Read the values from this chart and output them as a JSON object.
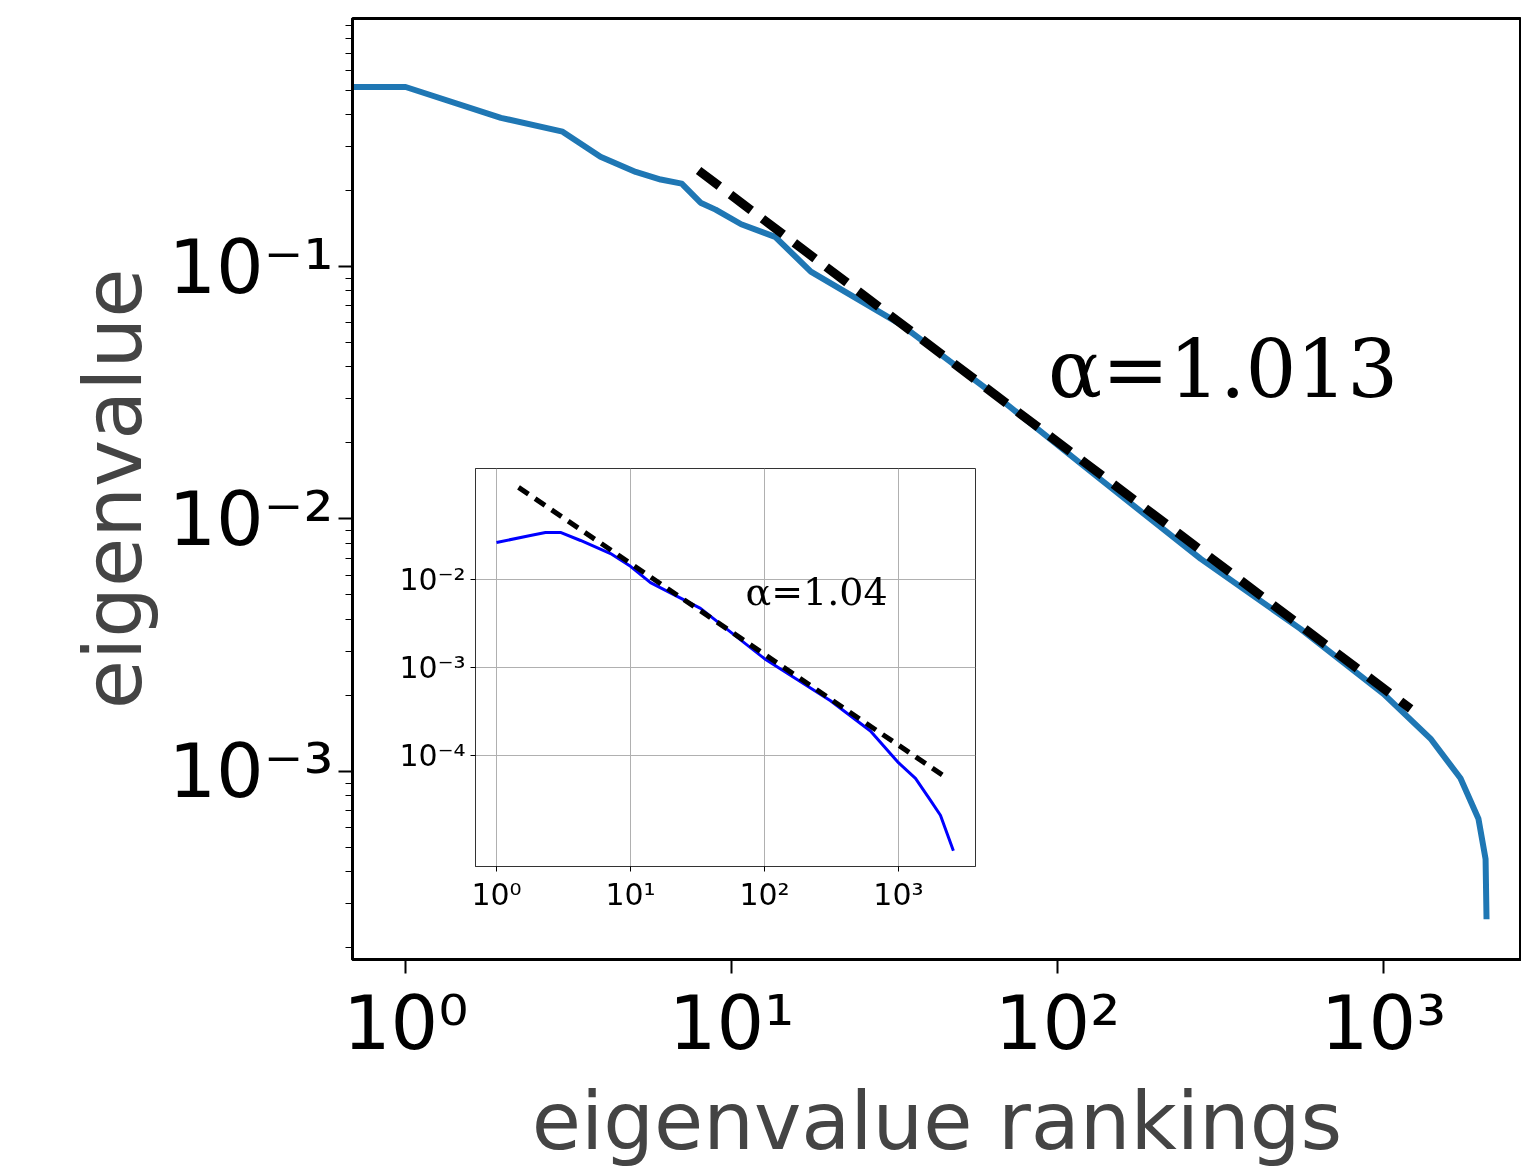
{
  "chart_data": [
    {
      "type": "line",
      "xlabel": "eigenvalue rankings",
      "ylabel": "eigenvalue",
      "log": "xy",
      "grid": false,
      "xlim": [
        0.687,
        2650
      ],
      "ylim": [
        0.00018,
        0.96
      ],
      "xticks": [
        {
          "value": 1,
          "label": "10⁰"
        },
        {
          "value": 10,
          "label": "10¹"
        },
        {
          "value": 100,
          "label": "10²"
        },
        {
          "value": 1000,
          "label": "10³"
        }
      ],
      "yticks": [
        {
          "value": 0.001,
          "label": "10⁻³"
        },
        {
          "value": 0.01,
          "label": "10⁻²"
        },
        {
          "value": 0.1,
          "label": "10⁻¹"
        }
      ],
      "series": [
        {
          "color": "#1f77b4",
          "line_style": "solid",
          "x": [
            0.687,
            1,
            1.96,
            3.03,
            3.96,
            5.08,
            6.06,
            7.03,
            8.03,
            8.93,
            10.7,
            13.6,
            17.5,
            33,
            66.8,
            135,
            275,
            556,
            1000,
            1393,
            1722,
            1955,
            2056,
            2070
          ],
          "values": [
            0.514,
            0.514,
            0.388,
            0.342,
            0.272,
            0.237,
            0.221,
            0.213,
            0.179,
            0.168,
            0.147,
            0.131,
            0.0955,
            0.059,
            0.0298,
            0.0144,
            0.00695,
            0.00367,
            0.00203,
            0.00135,
            0.00094,
            0.00065,
            0.00045,
            0.00026
          ]
        },
        {
          "color": "#000000",
          "line_style": "dashed",
          "x": [
            7.92,
            1211
          ],
          "values": [
            0.24,
            0.00177
          ]
        }
      ],
      "annotations": [
        "α=1.013"
      ]
    },
    {
      "type": "line",
      "log": "xy",
      "grid": true,
      "xlim": [
        0.697,
        3758
      ],
      "ylim": [
        5.5e-06,
        0.182
      ],
      "xticks": [
        {
          "value": 1,
          "label": "10⁰"
        },
        {
          "value": 10,
          "label": "10¹"
        },
        {
          "value": 100,
          "label": "10²"
        },
        {
          "value": 1000,
          "label": "10³"
        }
      ],
      "yticks": [
        {
          "value": 0.0001,
          "label": "10⁻⁴"
        },
        {
          "value": 0.001,
          "label": "10⁻³"
        },
        {
          "value": 0.01,
          "label": "10⁻²"
        }
      ],
      "series": [
        {
          "color": "#0000ff",
          "line_style": "solid",
          "x": [
            1,
            1.79,
            2.32,
            3.0,
            4.24,
            7.1,
            10,
            14.1,
            33.3,
            100,
            311,
            618,
            1000,
            1340,
            1734,
            2057,
            2570
          ],
          "values": [
            0.0263,
            0.0316,
            0.0342,
            0.0342,
            0.0277,
            0.0197,
            0.0141,
            0.0092,
            0.0047,
            0.00126,
            0.00042,
            0.00019,
            8.3e-05,
            5.5e-05,
            3.1e-05,
            2.1e-05,
            8.3e-06
          ]
        },
        {
          "color": "#000000",
          "line_style": "dashed",
          "x": [
            1.46,
            2281
          ],
          "values": [
            0.111,
            5.6e-05
          ]
        }
      ],
      "annotations": [
        "α=1.04"
      ]
    }
  ]
}
